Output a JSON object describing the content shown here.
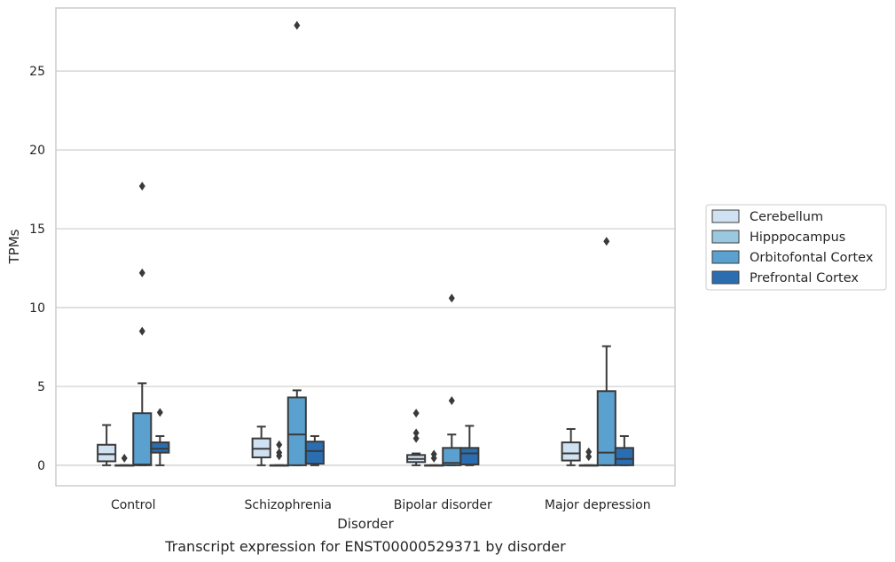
{
  "caption": "Transcript expression for ENST00000529371 by disorder",
  "chart_data": {
    "type": "box",
    "xlabel": "Disorder",
    "ylabel": "TPMs",
    "ylim": [
      -1.3,
      29.0
    ],
    "yticks": [
      0,
      5,
      10,
      15,
      20,
      25
    ],
    "grid": "horizontal",
    "legend_placement": "right",
    "categories": [
      "Control",
      "Schizophrenia",
      "Bipolar disorder",
      "Major depression"
    ],
    "series": [
      {
        "name": "Cerebellum",
        "color": "#d0e1f2",
        "boxes": [
          {
            "whislo": 0.0,
            "q1": 0.25,
            "med": 0.7,
            "q3": 1.3,
            "whishi": 2.55,
            "fliers": []
          },
          {
            "whislo": 0.0,
            "q1": 0.5,
            "med": 1.05,
            "q3": 1.7,
            "whishi": 2.45,
            "fliers": []
          },
          {
            "whislo": 0.0,
            "q1": 0.2,
            "med": 0.4,
            "q3": 0.65,
            "whishi": 0.75,
            "fliers": [
              1.7,
              2.05,
              3.3
            ]
          },
          {
            "whislo": 0.0,
            "q1": 0.3,
            "med": 0.75,
            "q3": 1.45,
            "whishi": 2.3,
            "fliers": []
          }
        ]
      },
      {
        "name": "Hipppocampus",
        "color": "#9ac8e0",
        "boxes": [
          {
            "whislo": 0.0,
            "q1": 0.0,
            "med": 0.0,
            "q3": 0.0,
            "whishi": 0.0,
            "fliers": [
              0.45
            ]
          },
          {
            "whislo": 0.0,
            "q1": 0.0,
            "med": 0.0,
            "q3": 0.0,
            "whishi": 0.0,
            "fliers": [
              0.6,
              0.8,
              1.3
            ]
          },
          {
            "whislo": 0.0,
            "q1": 0.0,
            "med": 0.0,
            "q3": 0.0,
            "whishi": 0.0,
            "fliers": [
              0.45,
              0.7
            ]
          },
          {
            "whislo": 0.0,
            "q1": 0.0,
            "med": 0.0,
            "q3": 0.0,
            "whishi": 0.0,
            "fliers": [
              0.55,
              0.85
            ]
          }
        ]
      },
      {
        "name": "Orbitofontal Cortex",
        "color": "#5aa1cf",
        "boxes": [
          {
            "whislo": 0.0,
            "q1": 0.0,
            "med": 0.05,
            "q3": 3.3,
            "whishi": 5.2,
            "fliers": [
              8.5,
              12.2,
              17.7
            ]
          },
          {
            "whislo": 0.0,
            "q1": 0.0,
            "med": 1.95,
            "q3": 4.3,
            "whishi": 4.75,
            "fliers": [
              27.9
            ]
          },
          {
            "whislo": 0.0,
            "q1": 0.0,
            "med": 0.15,
            "q3": 1.1,
            "whishi": 1.95,
            "fliers": [
              4.1,
              10.6
            ]
          },
          {
            "whislo": 0.0,
            "q1": 0.0,
            "med": 0.8,
            "q3": 4.7,
            "whishi": 7.55,
            "fliers": [
              14.2
            ]
          }
        ]
      },
      {
        "name": "Prefrontal Cortex",
        "color": "#2a6eb1",
        "boxes": [
          {
            "whislo": 0.0,
            "q1": 0.8,
            "med": 1.05,
            "q3": 1.45,
            "whishi": 1.85,
            "fliers": [
              3.35
            ]
          },
          {
            "whislo": 0.0,
            "q1": 0.1,
            "med": 0.9,
            "q3": 1.5,
            "whishi": 1.85,
            "fliers": []
          },
          {
            "whislo": 0.0,
            "q1": 0.05,
            "med": 0.75,
            "q3": 1.1,
            "whishi": 2.5,
            "fliers": []
          },
          {
            "whislo": 0.0,
            "q1": 0.0,
            "med": 0.4,
            "q3": 1.1,
            "whishi": 1.85,
            "fliers": []
          }
        ]
      }
    ]
  }
}
